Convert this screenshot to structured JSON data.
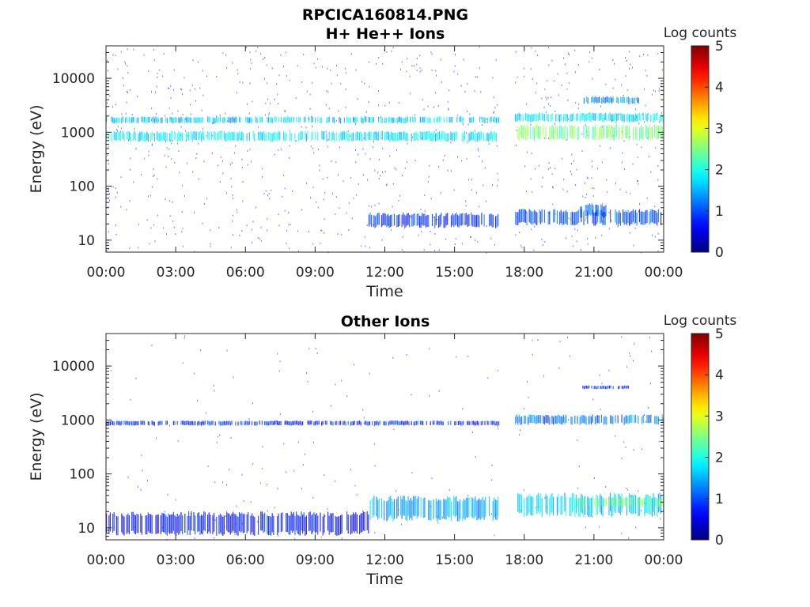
{
  "figure": {
    "title_line1": "RPCICA160814.PNG"
  },
  "chart_data": [
    {
      "type": "heatmap",
      "title": "H+ He++ Ions",
      "xlabel": "Time",
      "ylabel": "Energy (eV)",
      "y_scale": "log",
      "ylim": [
        6,
        40000
      ],
      "xlim_hours": [
        0,
        24
      ],
      "x_ticks": [
        "00:00",
        "03:00",
        "06:00",
        "09:00",
        "12:00",
        "15:00",
        "18:00",
        "21:00",
        "00:00"
      ],
      "y_ticks": [
        "10",
        "100",
        "1000",
        "10000"
      ],
      "colorbar": {
        "label": "Log counts",
        "min": 0,
        "max": 5,
        "ticks": [
          "0",
          "1",
          "2",
          "3",
          "4",
          "5"
        ]
      },
      "data_gap_hours": [
        16.9,
        17.6
      ],
      "bands": [
        {
          "t_start": 0.0,
          "t_end": 16.9,
          "energy_low": 700,
          "energy_high": 1000,
          "log_counts": 1.8
        },
        {
          "t_start": 0.0,
          "t_end": 16.9,
          "energy_low": 1500,
          "energy_high": 1900,
          "log_counts": 1.6
        },
        {
          "t_start": 17.6,
          "t_end": 24.0,
          "energy_low": 750,
          "energy_high": 1300,
          "log_counts": 2.5
        },
        {
          "t_start": 17.6,
          "t_end": 24.0,
          "energy_low": 1600,
          "energy_high": 2200,
          "log_counts": 1.8
        },
        {
          "t_start": 20.5,
          "t_end": 23.0,
          "energy_low": 3500,
          "energy_high": 4500,
          "log_counts": 1.3
        },
        {
          "t_start": 11.3,
          "t_end": 16.9,
          "energy_low": 18,
          "energy_high": 30,
          "log_counts": 0.9
        },
        {
          "t_start": 17.6,
          "t_end": 24.0,
          "energy_low": 20,
          "energy_high": 35,
          "log_counts": 1.0
        },
        {
          "t_start": 20.4,
          "t_end": 21.5,
          "energy_low": 28,
          "energy_high": 45,
          "log_counts": 1.2
        }
      ]
    },
    {
      "type": "heatmap",
      "title": "Other Ions",
      "xlabel": "Time",
      "ylabel": "Energy (eV)",
      "y_scale": "log",
      "ylim": [
        6,
        40000
      ],
      "xlim_hours": [
        0,
        24
      ],
      "x_ticks": [
        "00:00",
        "03:00",
        "06:00",
        "09:00",
        "12:00",
        "15:00",
        "18:00",
        "21:00",
        "00:00"
      ],
      "y_ticks": [
        "10",
        "100",
        "1000",
        "10000"
      ],
      "colorbar": {
        "label": "Log counts",
        "min": 0,
        "max": 5,
        "ticks": [
          "0",
          "1",
          "2",
          "3",
          "4",
          "5"
        ]
      },
      "data_gap_hours": [
        16.9,
        17.6
      ],
      "bands": [
        {
          "t_start": 0.0,
          "t_end": 16.9,
          "energy_low": 800,
          "energy_high": 950,
          "log_counts": 0.8
        },
        {
          "t_start": 17.6,
          "t_end": 24.0,
          "energy_low": 850,
          "energy_high": 1200,
          "log_counts": 1.2
        },
        {
          "t_start": 20.5,
          "t_end": 22.5,
          "energy_low": 3800,
          "energy_high": 4300,
          "log_counts": 0.8
        },
        {
          "t_start": 0.0,
          "t_end": 11.3,
          "energy_low": 8,
          "energy_high": 18,
          "log_counts": 0.6
        },
        {
          "t_start": 11.3,
          "t_end": 16.9,
          "energy_low": 15,
          "energy_high": 35,
          "log_counts": 1.4
        },
        {
          "t_start": 17.6,
          "t_end": 24.0,
          "energy_low": 18,
          "energy_high": 40,
          "log_counts": 1.7
        },
        {
          "t_start": 20.2,
          "t_end": 24.0,
          "energy_low": 25,
          "energy_high": 35,
          "log_counts": 2.4
        }
      ]
    }
  ]
}
